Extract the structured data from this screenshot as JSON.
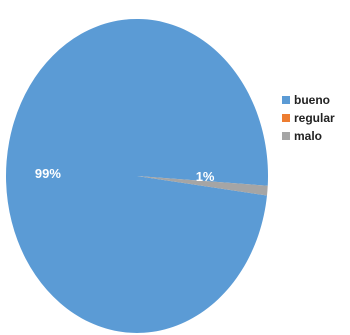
{
  "chart_data": {
    "type": "pie",
    "categories": [
      "bueno",
      "regular",
      "malo"
    ],
    "values": [
      99,
      0,
      1
    ],
    "data_labels": [
      "99%",
      "",
      "1%"
    ],
    "colors": [
      "#5b9bd5",
      "#ed7d31",
      "#a5a5a5"
    ],
    "legend_position": "right",
    "title": ""
  }
}
